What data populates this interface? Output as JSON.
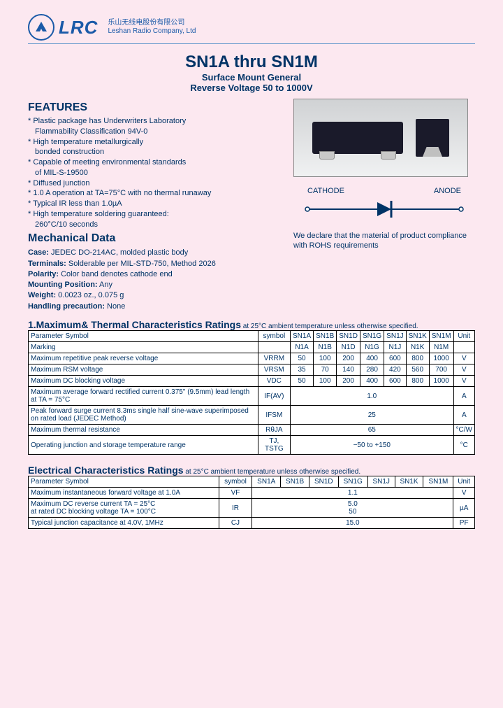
{
  "company": {
    "logo_text": "LRC",
    "name_cn": "乐山无线电股份有限公司",
    "name_en": "Leshan Radio Company, Ltd"
  },
  "title": {
    "main": "SN1A  thru SN1M",
    "sub1": "Surface Mount General",
    "sub2": "Reverse Voltage 50 to 1000V"
  },
  "features": {
    "heading": "FEATURES",
    "items": [
      "Plastic package has Underwriters Laboratory",
      "Flammability Classification 94V-0",
      "High temperature metallurgically",
      "bonded construction",
      "Capable of meeting environmental standards",
      "of MIL-S-19500",
      "Diffused junction",
      "1.0 A operation at TA=75°C with no thermal runaway",
      "Typical IR less than 1.0µA",
      "High temperature soldering guaranteed:",
      "260°C/10 seconds"
    ],
    "indent_flags": [
      false,
      true,
      false,
      true,
      false,
      true,
      false,
      false,
      false,
      false,
      true
    ]
  },
  "mechanical": {
    "heading": "Mechanical Data",
    "rows": [
      {
        "label": "Case:",
        "value": "JEDEC DO-214AC, molded plastic body"
      },
      {
        "label": "Terminals:",
        "value": "Solderable per  MIL-STD-750, Method 2026"
      },
      {
        "label": "Polarity:",
        "value": "Color band denotes cathode end"
      },
      {
        "label": "Mounting Position:",
        "value": "Any"
      },
      {
        "label": "Weight:",
        "value": "0.0023 oz., 0.075 g"
      },
      {
        "label": "Handling precaution:",
        "value": "None"
      }
    ]
  },
  "diagram": {
    "cathode": "CATHODE",
    "anode": "ANODE"
  },
  "rohs": {
    "line1": "We declare that the material of product  compliance",
    "line2": "with ROHS  requirements"
  },
  "table1": {
    "title": "1.Maximum& Thermal Characteristics Ratings",
    "note": " at 25°C ambient temperature unless otherwise specified.",
    "headers": [
      "Parameter Symbol",
      "symbol",
      "SN1A",
      "SN1B",
      "SN1D",
      "SN1G",
      "SN1J",
      "SN1K",
      "SN1M",
      "Unit"
    ],
    "rows": [
      {
        "param": "Marking",
        "sym": "",
        "vals": [
          "N1A",
          "N1B",
          "N1D",
          "N1G",
          "N1J",
          "N1K",
          "N1M"
        ],
        "unit": ""
      },
      {
        "param": "Maximum repetitive peak reverse voltage",
        "sym": "VRRM",
        "vals": [
          "50",
          "100",
          "200",
          "400",
          "600",
          "800",
          "1000"
        ],
        "unit": "V"
      },
      {
        "param": "Maximum RSM voltage",
        "sym": "VRSM",
        "vals": [
          "35",
          "70",
          "140",
          "280",
          "420",
          "560",
          "700"
        ],
        "unit": "V"
      },
      {
        "param": "Maximum DC blocking voltage",
        "sym": "VDC",
        "vals": [
          "50",
          "100",
          "200",
          "400",
          "600",
          "800",
          "1000"
        ],
        "unit": "V"
      },
      {
        "param": "Maximum average forward rectified current 0.375\" (9.5mm) lead length at TA = 75°C",
        "sym": "IF(AV)",
        "span": "1.0",
        "unit": "A"
      },
      {
        "param": "Peak forward surge current 8.3ms single half sine-wave superimposed on rated load (JEDEC Method)",
        "sym": "IFSM",
        "span": "25",
        "unit": "A"
      },
      {
        "param": "Maximum  thermal resistance",
        "sym": "RθJA",
        "span": "65",
        "unit": "°C/W"
      },
      {
        "param": "Operating junction and storage temperature range",
        "sym": "TJ, TSTG",
        "span": "−50 to +150",
        "unit": "°C"
      }
    ]
  },
  "table2": {
    "title": "Electrical Characteristics Ratings",
    "note": " at 25°C ambient temperature unless otherwise specified.",
    "headers": [
      "Parameter Symbol",
      "symbol",
      "SN1A",
      "SN1B",
      "SN1D",
      "SN1G",
      "SN1J",
      "SN1K",
      "SN1M",
      "Unit"
    ],
    "rows": [
      {
        "param": "Maximum instantaneous forward voltage at 1.0A",
        "sym": "VF",
        "span": "1.1",
        "unit": "V"
      },
      {
        "param": "Maximum DC reverse current TA = 25°C\nat rated DC blocking voltage TA = 100°C",
        "sym": "IR",
        "span": "5.0\n50",
        "unit": "µA"
      },
      {
        "param": "Typical junction capacitance at 4.0V, 1MHz",
        "sym": "CJ",
        "span": "15.0",
        "unit": "PF"
      }
    ]
  },
  "colors": {
    "bg": "#fce8f0",
    "text": "#003366",
    "logo": "#1a5aa8",
    "border": "#000000",
    "table_bg": "#ffffff"
  }
}
